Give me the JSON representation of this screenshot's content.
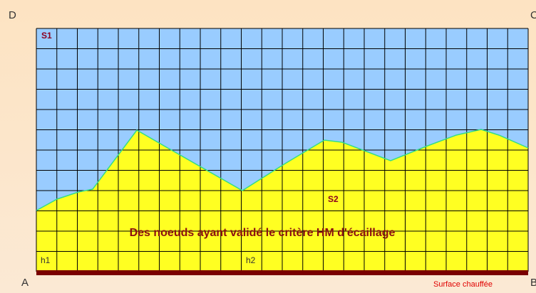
{
  "corners": {
    "top_left": "D",
    "top_right": "C",
    "bottom_left": "A",
    "bottom_right": "B"
  },
  "regions": {
    "upper": "S1",
    "lower": "S2"
  },
  "caption": "Des noeuds ayant validé le critère HM d'écaillage",
  "markers": [
    "h1",
    "h2"
  ],
  "surface_label": "Surface chauffée"
}
